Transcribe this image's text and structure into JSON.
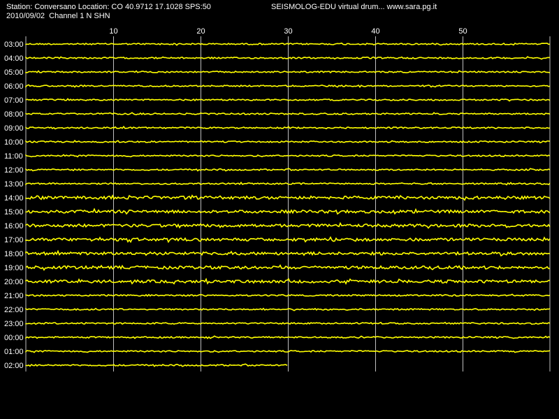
{
  "header": {
    "station_info": "Station: Conversano Location: CO 40.9712 17.1028 SPS:50",
    "app_info": "SEISMOLOG-EDU virtual drum... www.sara.pg.it",
    "date_channel": "2010/09/02  Channel 1 N SHN"
  },
  "colors": {
    "background": "#000000",
    "trace": "#ffff00",
    "grid": "#c0c0c0",
    "text": "#ffffff"
  },
  "chart_data": {
    "type": "line",
    "title": "",
    "xlabel": "",
    "ylabel": "",
    "x_unit": "minute of hour",
    "xlim": [
      0,
      60
    ],
    "x_ticks": [
      10,
      20,
      30,
      40,
      50
    ],
    "grid": true,
    "y_ticks": [
      "03:00",
      "04:00",
      "05:00",
      "06:00",
      "07:00",
      "08:00",
      "09:00",
      "10:00",
      "11:00",
      "12:00",
      "13:00",
      "14:00",
      "15:00",
      "16:00",
      "17:00",
      "18:00",
      "19:00",
      "20:00",
      "21:00",
      "22:00",
      "23:00",
      "00:00",
      "01:00",
      "02:00"
    ],
    "series": [
      {
        "hour": "03:00",
        "minutes_recorded": 60,
        "noise": 1
      },
      {
        "hour": "04:00",
        "minutes_recorded": 60,
        "noise": 1
      },
      {
        "hour": "05:00",
        "minutes_recorded": 60,
        "noise": 1
      },
      {
        "hour": "06:00",
        "minutes_recorded": 60,
        "noise": 1
      },
      {
        "hour": "07:00",
        "minutes_recorded": 60,
        "noise": 1
      },
      {
        "hour": "08:00",
        "minutes_recorded": 60,
        "noise": 1
      },
      {
        "hour": "09:00",
        "minutes_recorded": 60,
        "noise": 1
      },
      {
        "hour": "10:00",
        "minutes_recorded": 60,
        "noise": 1
      },
      {
        "hour": "11:00",
        "minutes_recorded": 60,
        "noise": 1
      },
      {
        "hour": "12:00",
        "minutes_recorded": 60,
        "noise": 1
      },
      {
        "hour": "13:00",
        "minutes_recorded": 60,
        "noise": 1
      },
      {
        "hour": "14:00",
        "minutes_recorded": 60,
        "noise": 2
      },
      {
        "hour": "15:00",
        "minutes_recorded": 60,
        "noise": 2
      },
      {
        "hour": "16:00",
        "minutes_recorded": 60,
        "noise": 2
      },
      {
        "hour": "17:00",
        "minutes_recorded": 60,
        "noise": 2
      },
      {
        "hour": "18:00",
        "minutes_recorded": 60,
        "noise": 2
      },
      {
        "hour": "19:00",
        "minutes_recorded": 60,
        "noise": 2
      },
      {
        "hour": "20:00",
        "minutes_recorded": 60,
        "noise": 2
      },
      {
        "hour": "21:00",
        "minutes_recorded": 60,
        "noise": 1
      },
      {
        "hour": "22:00",
        "minutes_recorded": 60,
        "noise": 1
      },
      {
        "hour": "23:00",
        "minutes_recorded": 60,
        "noise": 1
      },
      {
        "hour": "00:00",
        "minutes_recorded": 60,
        "noise": 1
      },
      {
        "hour": "01:00",
        "minutes_recorded": 60,
        "noise": 1
      },
      {
        "hour": "02:00",
        "minutes_recorded": 30,
        "noise": 1
      }
    ]
  }
}
